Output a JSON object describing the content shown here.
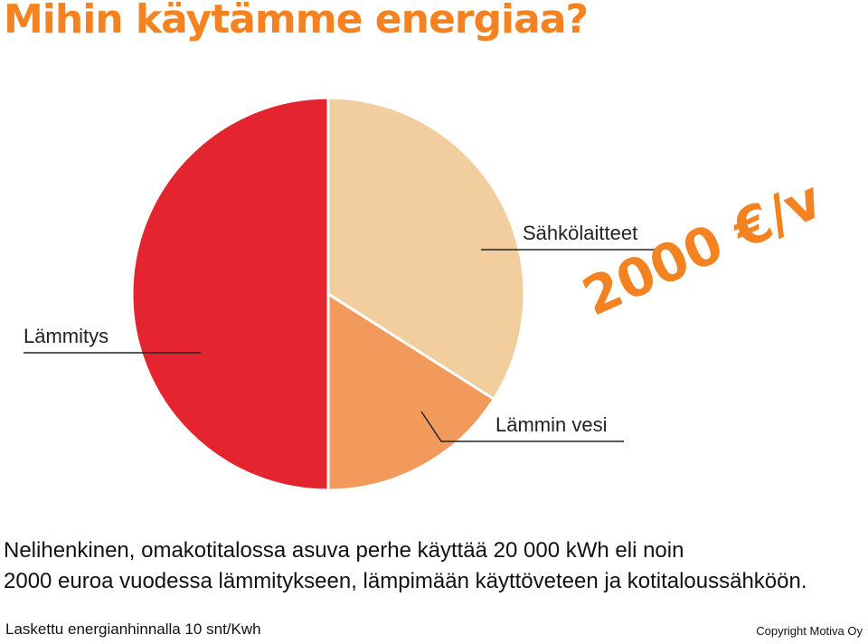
{
  "title": "Mihin käytämme energiaa?",
  "colors": {
    "title": "#f58220",
    "stamp": "#f58220",
    "slice_lammitys": "#e42530",
    "slice_sahkolaitteet": "#f2cd9d",
    "slice_lammin_vesi": "#f29a5c",
    "leader": "#222222"
  },
  "cost_stamp": "2000 €/v",
  "caption_lines": [
    "Nelihenkinen, omakotitalossa asuva perhe käyttää 20 000 kWh eli noin",
    "2000 euroa vuodessa lämmitykseen, lämpimään käyttöveteen ja kotitaloussähköön."
  ],
  "footer": {
    "left": "Laskettu energianhinnalla 10 snt/Kwh",
    "right": "Copyright Motiva Oy"
  },
  "chart_data": {
    "type": "pie",
    "title": "Mihin käytämme energiaa?",
    "slices": [
      {
        "label": "Sähkölaitteet",
        "value": 34,
        "color": "#f2cd9d"
      },
      {
        "label": "Lämmin vesi",
        "value": 16,
        "color": "#f29a5c"
      },
      {
        "label": "Lämmitys",
        "value": 50,
        "color": "#e42530"
      }
    ],
    "start_angle_deg": 0,
    "direction": "clockwise",
    "labels_with_leader_lines": true
  }
}
